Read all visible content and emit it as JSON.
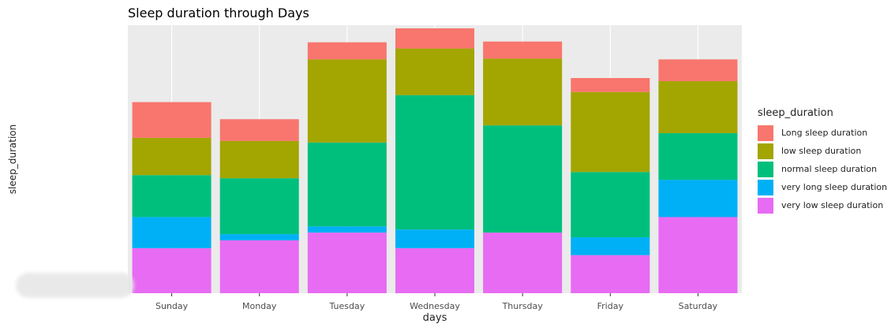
{
  "chart_data": {
    "type": "bar",
    "stacked": true,
    "title": "Sleep duration through Days",
    "xlabel": "days",
    "ylabel": "sleep_duration",
    "categories": [
      "Sunday",
      "Monday",
      "Tuesday",
      "Wednesday",
      "Thursday",
      "Friday",
      "Saturday"
    ],
    "legend_title": "sleep_duration",
    "legend_position": "right",
    "grid": true,
    "ylim": [
      0,
      345
    ],
    "series": [
      {
        "name": "very low sleep duration",
        "color": "#E76BF3",
        "values": [
          58,
          68,
          78,
          58,
          78,
          49,
          98
        ]
      },
      {
        "name": "very long sleep duration",
        "color": "#00B0F6",
        "values": [
          40,
          8,
          8,
          24,
          0,
          23,
          48
        ]
      },
      {
        "name": "normal sleep duration",
        "color": "#00BF7D",
        "values": [
          54,
          72,
          108,
          173,
          138,
          84,
          60
        ]
      },
      {
        "name": "low sleep duration",
        "color": "#A3A500",
        "values": [
          48,
          48,
          107,
          60,
          86,
          103,
          67
        ]
      },
      {
        "name": "Long sleep duration",
        "color": "#F8766D",
        "values": [
          46,
          28,
          22,
          26,
          22,
          18,
          28
        ]
      }
    ],
    "legend_order": [
      "Long sleep duration",
      "low sleep duration",
      "normal sleep duration",
      "very long sleep duration",
      "very low sleep duration"
    ]
  }
}
